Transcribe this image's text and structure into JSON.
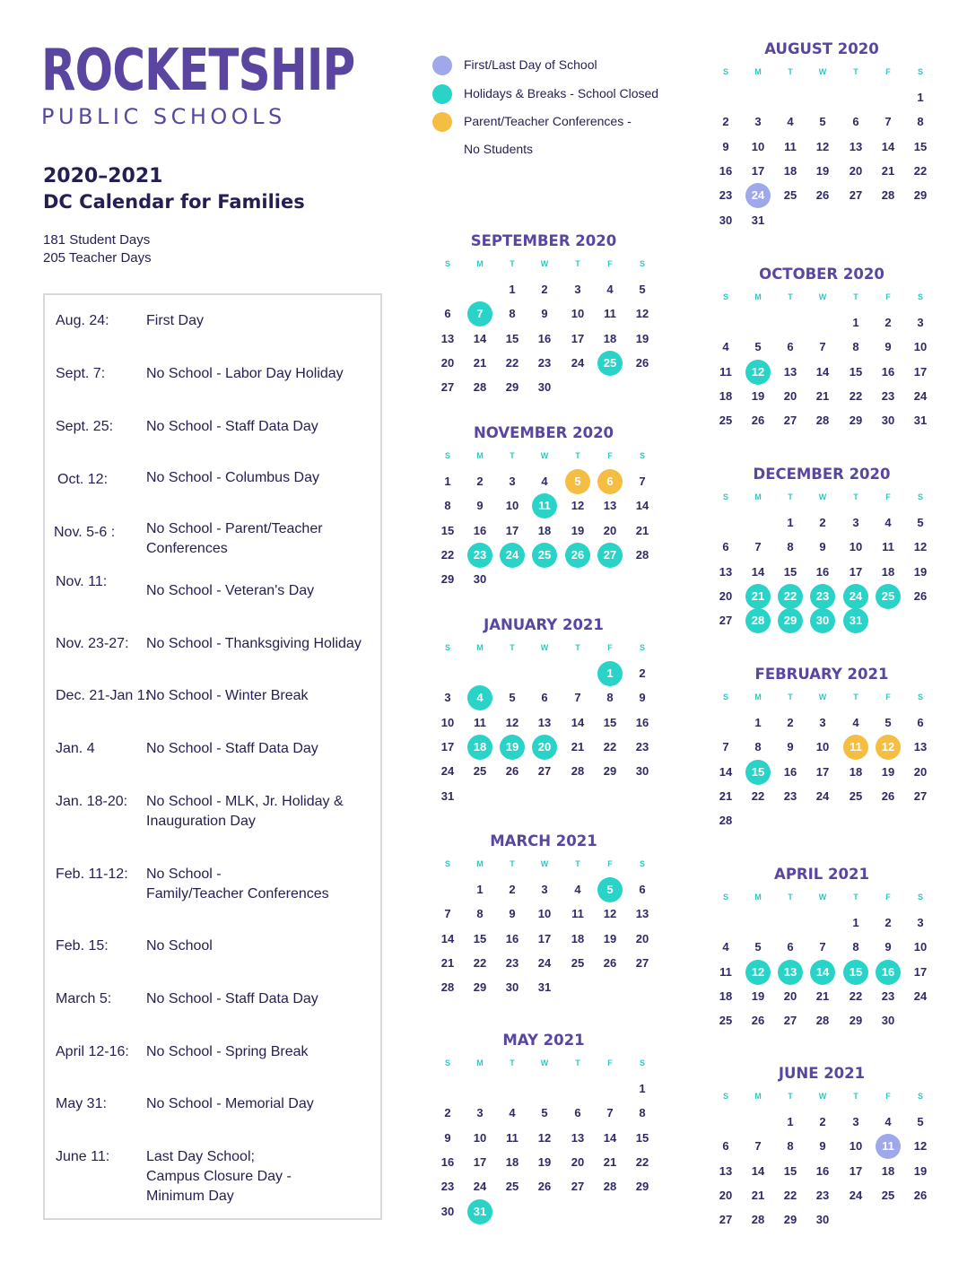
{
  "header": {
    "logo_main": "ROCKETSHIP",
    "logo_sub": "PUBLIC SCHOOLS",
    "year": "2020–2021",
    "title": "DC Calendar for Families",
    "student_days": "181 Student Days",
    "teacher_days": "205 Teacher Days"
  },
  "legend": [
    {
      "label": "First/Last Day of School",
      "color": "#9ea8ea"
    },
    {
      "label": "Holidays & Breaks - School Closed",
      "color": "#2ad3c7"
    },
    {
      "label": "Parent/Teacher Conferences -",
      "color": "#f5bd41"
    },
    {
      "label": "No Students",
      "color": ""
    }
  ],
  "events": [
    {
      "date": "Aug. 24:",
      "desc": "First Day"
    },
    {
      "date": "Sept. 7:",
      "desc": "No School - Labor Day Holiday"
    },
    {
      "date": "Sept. 25:",
      "desc": "No School - Staff Data Day"
    },
    {
      "date": "Oct. 12:",
      "desc": "No School -  Columbus Day"
    },
    {
      "date": "Nov. 5-6 :",
      "desc": "No School -  Parent/Teacher\nConferences"
    },
    {
      "date": "Nov. 11:",
      "desc": "No School -  Veteran's Day"
    },
    {
      "date": "Nov. 23-27:",
      "desc": "No School - Thanksgiving Holiday"
    },
    {
      "date": "Dec. 21-Jan 1:",
      "desc": "No School - Winter Break"
    },
    {
      "date": "Jan. 4",
      "desc": "No School - Staff Data Day"
    },
    {
      "date": "Jan. 18-20:",
      "desc": "No School - MLK, Jr. Holiday &\nInauguration Day"
    },
    {
      "date": "Feb. 11-12:",
      "desc": "No School -\nFamily/Teacher Conferences"
    },
    {
      "date": "Feb. 15:",
      "desc": "No School"
    },
    {
      "date": "March 5:",
      "desc": "No School - Staff Data Day"
    },
    {
      "date": "April 12-16:",
      "desc": "No School - Spring Break"
    },
    {
      "date": "May 31:",
      "desc": "No School - Memorial Day"
    },
    {
      "date": "June 11:",
      "desc": "Last Day School;\nCampus Closure Day -\nMinimum Day"
    }
  ],
  "dow_labels": [
    "S",
    "M",
    "T",
    "W",
    "T",
    "F",
    "S"
  ],
  "months": [
    {
      "name": "AUGUST 2020",
      "start": 6,
      "days": 31,
      "highlights": {
        "24": "f"
      }
    },
    {
      "name": "SEPTEMBER 2020",
      "start": 2,
      "days": 30,
      "highlights": {
        "7": "h",
        "25": "h"
      }
    },
    {
      "name": "OCTOBER 2020",
      "start": 4,
      "days": 31,
      "highlights": {
        "12": "h"
      }
    },
    {
      "name": "NOVEMBER 2020",
      "start": 0,
      "days": 30,
      "highlights": {
        "5": "c",
        "6": "c",
        "11": "h",
        "23": "h",
        "24": "h",
        "25": "h",
        "26": "h",
        "27": "h"
      }
    },
    {
      "name": "DECEMBER 2020",
      "start": 2,
      "days": 31,
      "highlights": {
        "21": "h",
        "22": "h",
        "23": "h",
        "24": "h",
        "25": "h",
        "28": "h",
        "29": "h",
        "30": "h",
        "31": "h"
      }
    },
    {
      "name": "JANUARY 2021",
      "start": 5,
      "days": 31,
      "highlights": {
        "1": "h",
        "4": "h",
        "18": "h",
        "19": "h",
        "20": "h"
      }
    },
    {
      "name": "FEBRUARY  2021",
      "start": 1,
      "days": 28,
      "highlights": {
        "11": "c",
        "12": "c",
        "15": "h"
      }
    },
    {
      "name": "MARCH  2021",
      "start": 1,
      "days": 31,
      "highlights": {
        "5": "h"
      }
    },
    {
      "name": "APRIL 2021",
      "start": 4,
      "days": 30,
      "highlights": {
        "12": "h",
        "13": "h",
        "14": "h",
        "15": "h",
        "16": "h"
      }
    },
    {
      "name": "MAY 2021",
      "start": 6,
      "days": 31,
      "highlights": {
        "31": "h"
      }
    },
    {
      "name": "JUNE 2021",
      "start": 2,
      "days": 30,
      "highlights": {
        "11": "f"
      }
    }
  ]
}
